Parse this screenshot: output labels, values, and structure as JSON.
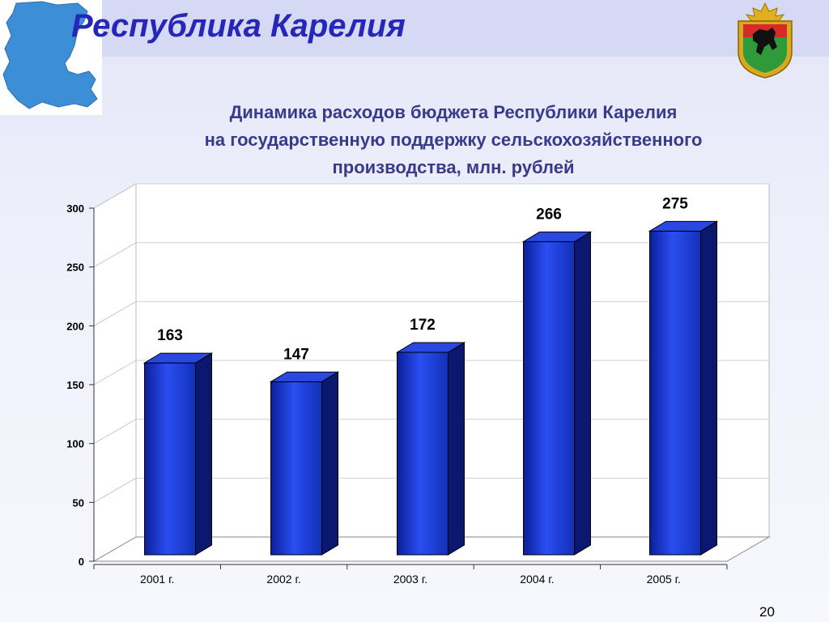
{
  "header": {
    "title": "Республика Карелия"
  },
  "chart_data": {
    "type": "bar",
    "title_lines": [
      "Динамика расходов бюджета Республики Карелия",
      "на государственную поддержку сельскохозяйственного",
      "производства, млн. рублей"
    ],
    "categories": [
      "2001 г.",
      "2002 г.",
      "2003 г.",
      "2004 г.",
      "2005 г."
    ],
    "values": [
      163,
      147,
      172,
      266,
      275
    ],
    "data_labels": [
      "163",
      "147",
      "172",
      "266",
      "275"
    ],
    "y_ticks": [
      "0",
      "50",
      "100",
      "150",
      "200",
      "250",
      "300"
    ],
    "ylim": [
      0,
      300
    ],
    "grid": true,
    "legend": "none",
    "bar_color": "#1a3ad6"
  },
  "footer": {
    "page_number": "20"
  }
}
